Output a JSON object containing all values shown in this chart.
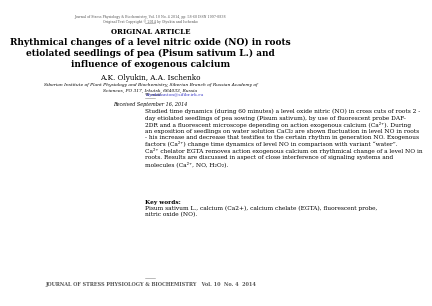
{
  "header_line1": "Journal of Stress Physiology & Biochemistry, Vol. 10 No. 4 2014, pp. 58-68 ISSN 1997-0838",
  "header_line2": "Original Text Copyright © 2014 by Olyukin and Ischenko",
  "section_label": "ORIGINAL ARTICLE",
  "title": "Rhythmical changes of a level nitric oxide (NO) in roots\netiolated seedlings of pea (Pisum sativum L.) and\ninfluence of exogenous calcium",
  "authors": "A.K. Olyukin, A.A. Ischenko",
  "affiliation": "Siberian Institute of Plant Physiology and Biochemistry, Siberian Branch of Russian Academy of\nSciences, PO 317, Irkutsk, 664033, Russia",
  "email_label": "*E-mail:",
  "email": "olyukinanton@sifibr.irk.ru",
  "received": "Received September 16, 2014",
  "abstract": "Studied time dynamics (during 60 minutes) a level oxide nitric (NO) in cross cuts of roots 2 -\nday etiolated seedlings of pea sowing (Pisum sativum), by use of fluorescent probe DAF-\n2DR and a fluorescent microscope depending on action exogenous calcium (Ca²⁺). During\nan exposition of seedlings on water solution CaCl₂ are shown fluctuation in level NO in roots\n- his increase and decrease that testifies to the certain rhythm in generation NO. Exogenous\nfactors (Ca²⁺) change time dynamics of level NO in comparison with variant “water”.\nCa²⁺ chelator EGTA removes action exogenous calcium on rhythmical change of a level NO in\nroots. Results are discussed in aspect of close interference of signaling systems and\nmolecules (Ca²⁺, NO, H₂O₂).",
  "keywords_label": "Key words:",
  "keywords": "Pisum sativum L., calcium (Ca2+), calcium chelate (EGTA), fluorescent probe,\nnitric oxide (NO).",
  "footer": "JOURNAL OF STRESS PHYSIOLOGY & BIOCHEMISTRY   Vol. 10  No. 4  2014",
  "bg_color": "#ffffff",
  "text_color": "#000000",
  "header_color": "#555555",
  "link_color": "#4444cc",
  "title_fontsize": 6.5,
  "body_fontsize": 4.2,
  "section_fontsize": 5.0,
  "author_fontsize": 5.2,
  "footer_fontsize": 3.5
}
